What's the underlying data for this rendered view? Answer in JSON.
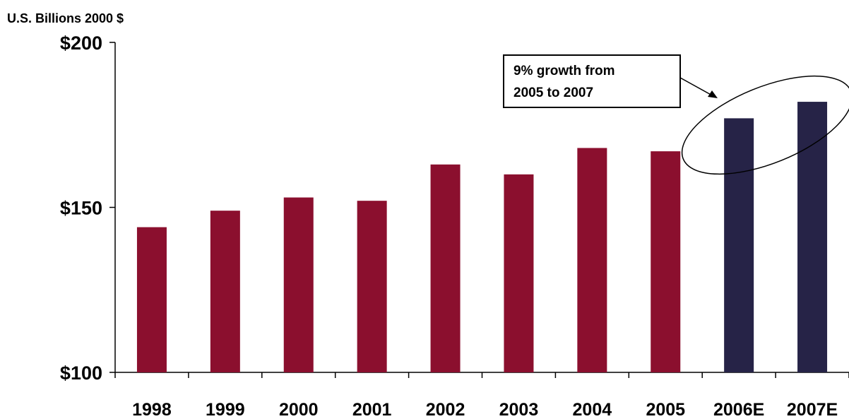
{
  "chart_data": {
    "type": "bar",
    "unit_label": "U.S. Billions 2000 $",
    "categories": [
      "1998",
      "1999",
      "2000",
      "2001",
      "2002",
      "2003",
      "2004",
      "2005",
      "2006E",
      "2007E"
    ],
    "values": [
      144,
      149,
      153,
      152,
      163,
      160,
      168,
      167,
      177,
      182
    ],
    "ylim": [
      100,
      200
    ],
    "yticks": [
      100,
      150,
      200
    ],
    "ytick_labels": [
      "$100",
      "$150",
      "$200"
    ],
    "estimated_categories": [
      "2006E",
      "2007E"
    ],
    "colors": {
      "actual": "#8b0f2e",
      "estimate": "#262347",
      "axis": "#000000"
    },
    "grid": false,
    "legend": "none",
    "annotation": {
      "lines": [
        "9% growth from",
        "2005 to 2007"
      ],
      "highlight": "ellipse around 2005–2007 bar tops",
      "arrow": true
    }
  }
}
